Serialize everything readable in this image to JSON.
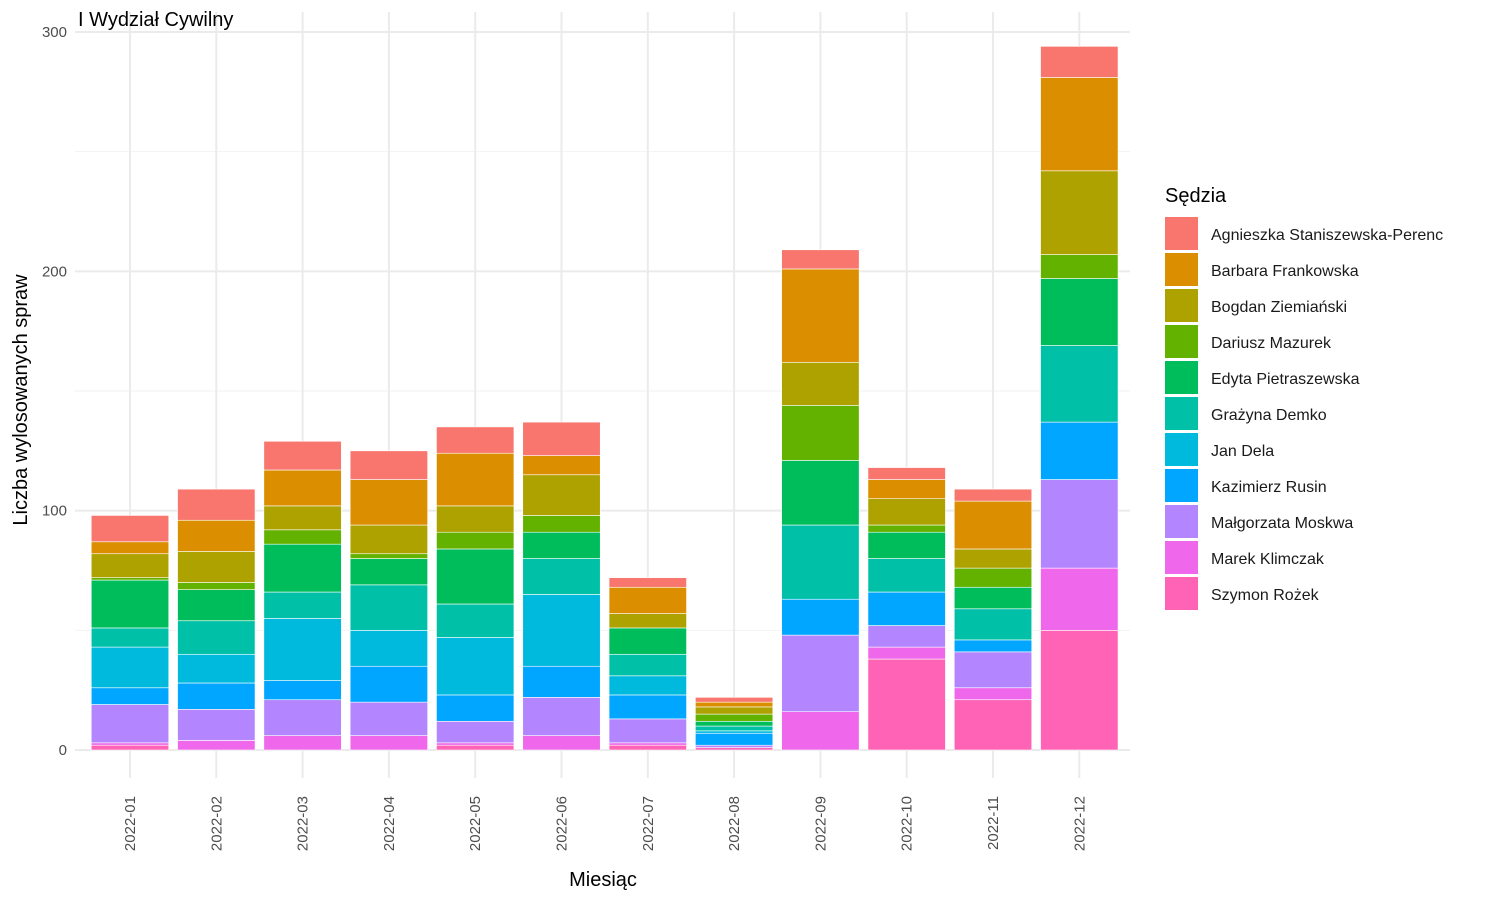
{
  "chart_data": {
    "type": "bar",
    "stacked": true,
    "title": "I Wydział Cywilny",
    "xlabel": "Miesiąc",
    "ylabel": "Liczba wylosowanych spraw",
    "ylim": [
      0,
      300
    ],
    "yticks": [
      0,
      100,
      200,
      300
    ],
    "grid": true,
    "legend_position": "right",
    "legend_title": "Sędzia",
    "categories": [
      "2022-01",
      "2022-02",
      "2022-03",
      "2022-04",
      "2022-05",
      "2022-06",
      "2022-07",
      "2022-08",
      "2022-09",
      "2022-10",
      "2022-11",
      "2022-12"
    ],
    "series": [
      {
        "name": "Agnieszka Staniszewska-Perenc",
        "color": "#F8766D",
        "values": [
          11,
          13,
          12,
          12,
          11,
          14,
          4,
          2,
          8,
          5,
          5,
          13
        ]
      },
      {
        "name": "Barbara Frankowska",
        "color": "#DB8E00",
        "values": [
          5,
          13,
          15,
          19,
          22,
          8,
          11,
          2,
          39,
          8,
          20,
          39
        ]
      },
      {
        "name": "Bogdan Ziemiański",
        "color": "#AEA200",
        "values": [
          10,
          13,
          10,
          12,
          11,
          17,
          6,
          3,
          18,
          11,
          8,
          35
        ]
      },
      {
        "name": "Dariusz Mazurek",
        "color": "#64B200",
        "values": [
          1,
          3,
          6,
          2,
          7,
          7,
          0,
          3,
          23,
          3,
          8,
          10
        ]
      },
      {
        "name": "Edyta Pietraszewska",
        "color": "#00BD5C",
        "values": [
          20,
          13,
          20,
          11,
          23,
          11,
          11,
          2,
          27,
          11,
          9,
          28
        ]
      },
      {
        "name": "Grażyna Demko",
        "color": "#00C1A7",
        "values": [
          8,
          14,
          11,
          19,
          14,
          15,
          9,
          2,
          31,
          14,
          13,
          32
        ]
      },
      {
        "name": "Jan Dela",
        "color": "#00BADE",
        "values": [
          17,
          12,
          26,
          15,
          24,
          30,
          8,
          1,
          0,
          0,
          0,
          0
        ]
      },
      {
        "name": "Kazimierz Rusin",
        "color": "#00A6FF",
        "values": [
          7,
          11,
          8,
          15,
          11,
          13,
          10,
          5,
          15,
          14,
          5,
          24
        ]
      },
      {
        "name": "Małgorzata Moskwa",
        "color": "#B385FF",
        "values": [
          16,
          13,
          15,
          14,
          9,
          16,
          10,
          1,
          32,
          9,
          15,
          37
        ]
      },
      {
        "name": "Marek Klimczak",
        "color": "#EF67EB",
        "values": [
          1,
          4,
          6,
          6,
          1,
          6,
          1,
          0,
          16,
          5,
          5,
          26
        ]
      },
      {
        "name": "Szymon Rożek",
        "color": "#FF63B6",
        "values": [
          2,
          0,
          0,
          0,
          2,
          0,
          2,
          1,
          0,
          38,
          21,
          50
        ]
      }
    ]
  }
}
